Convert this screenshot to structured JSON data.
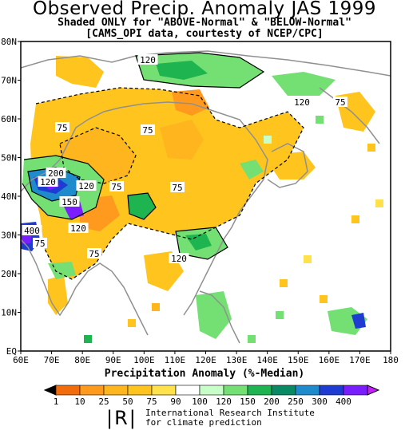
{
  "title": "Observed Precip. Anomaly JAS 1999",
  "subtitle_line1": "Shaded ONLY for \"ABOVE-Normal\" & \"BELOW-Normal\"",
  "subtitle_line2": "[CAMS_OPI data, courtesty of NCEP/CPC]",
  "map": {
    "lon_labels": [
      "60E",
      "70E",
      "80E",
      "90E",
      "100E",
      "110E",
      "120E",
      "130E",
      "140E",
      "150E",
      "160E",
      "170E",
      "180"
    ],
    "lat_labels": [
      "EQ",
      "10N",
      "20N",
      "30N",
      "40N",
      "50N",
      "60N",
      "70N",
      "80N"
    ],
    "contour_labels": [
      "120",
      "120",
      "75",
      "75",
      "75",
      "200",
      "120",
      "75",
      "150",
      "120",
      "75",
      "400",
      "75",
      "120",
      "75",
      "120"
    ]
  },
  "legend": {
    "title": "Precipitation Anomaly (%-Median)",
    "tick_labels": [
      "1",
      "10",
      "25",
      "50",
      "75",
      "90",
      "100",
      "120",
      "150",
      "200",
      "250",
      "300",
      "400"
    ],
    "colors": [
      "#000000",
      "#f26c0c",
      "#ff9a1e",
      "#ffb51e",
      "#ffc41e",
      "#ffe14b",
      "#ffffff",
      "#c8ffc8",
      "#74e074",
      "#1eb450",
      "#0a8a64",
      "#1e8ccc",
      "#1e3cd2",
      "#7a1eff",
      "#c81eff"
    ]
  },
  "footer": {
    "logo_text": "|R|",
    "org_line1": "International Research Institute",
    "org_line2": "for climate prediction"
  }
}
